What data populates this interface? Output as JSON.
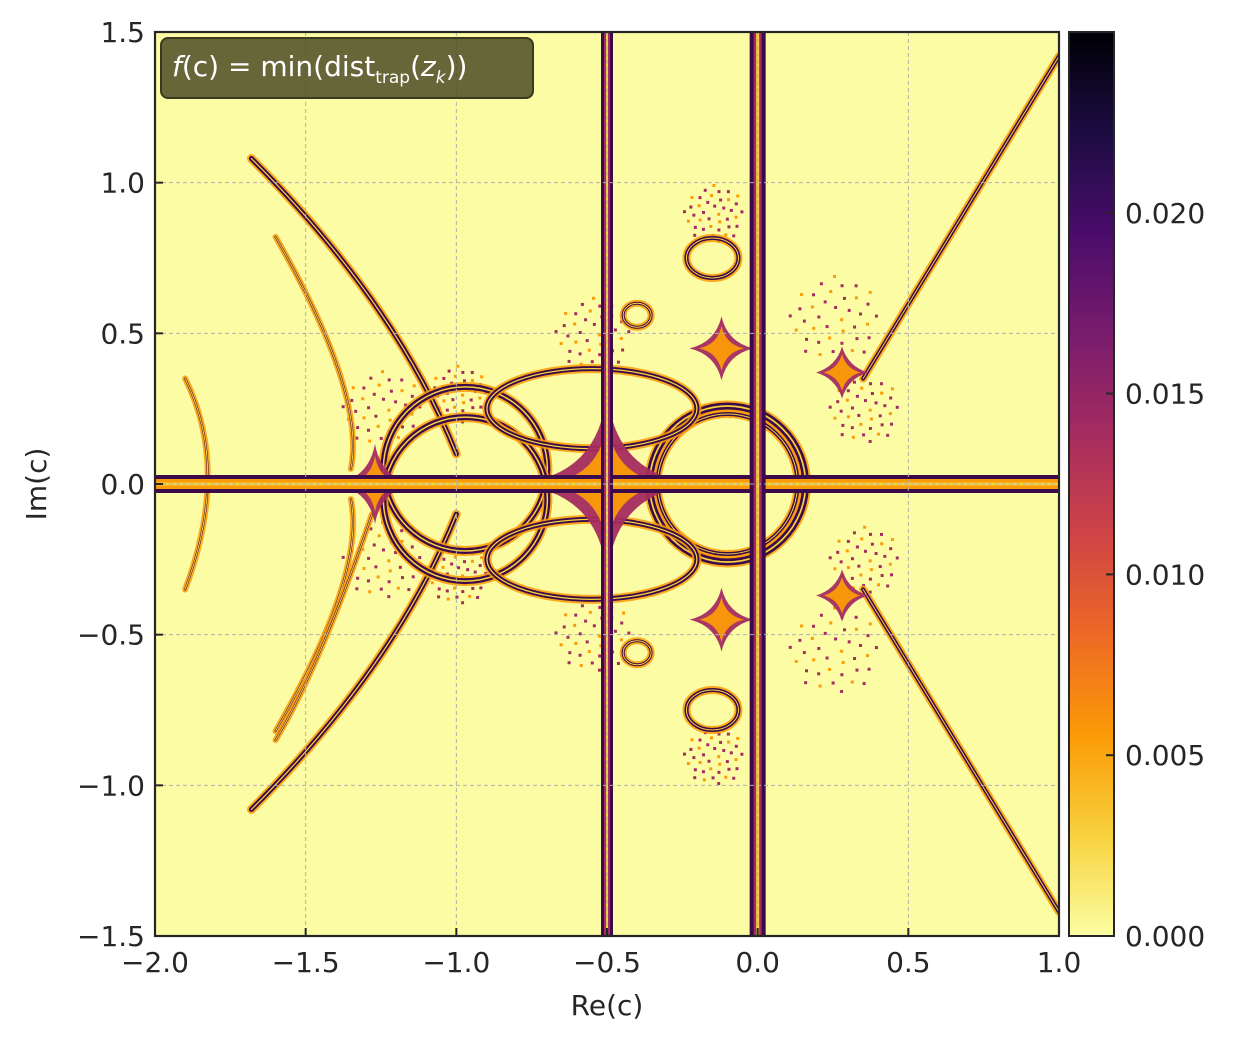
{
  "chart_data": {
    "type": "heatmap",
    "xlabel": "Re(c)",
    "ylabel": "Im(c)",
    "xlim": [
      -2.0,
      1.0
    ],
    "ylim": [
      -1.5,
      1.5
    ],
    "xticks": [
      -2.0,
      -1.5,
      -1.0,
      -0.5,
      0.0,
      0.5,
      1.0
    ],
    "xtick_labels": [
      "−2.0",
      "−1.5",
      "−1.0",
      "−0.5",
      "0.0",
      "0.5",
      "1.0"
    ],
    "yticks": [
      -1.5,
      -1.0,
      -0.5,
      0.0,
      0.5,
      1.0,
      1.5
    ],
    "ytick_labels": [
      "−1.5",
      "−1.0",
      "−0.5",
      "0.0",
      "0.5",
      "1.0",
      "1.5"
    ],
    "grid": true,
    "colormap": "inferno_r",
    "colorbar": {
      "min": 0.0,
      "max": 0.025,
      "ticks": [
        0.0,
        0.005,
        0.01,
        0.015,
        0.02
      ],
      "tick_labels": [
        "0.000",
        "0.005",
        "0.010",
        "0.015",
        "0.020"
      ]
    },
    "annotation": {
      "prefix": "f",
      "main": "(c) = min(dist",
      "subscript": "trap",
      "open": "(",
      "var": "z",
      "var_sub": "k",
      "close": "))",
      "box_color": "#4b4b27"
    },
    "background_value_color": "#fcfca4",
    "colormap_stops": [
      "#fcffa4",
      "#f7d13d",
      "#fb9b06",
      "#ed6925",
      "#cf4446",
      "#a52c60",
      "#781c6d",
      "#4a0c6b",
      "#1b0c41",
      "#000004"
    ]
  }
}
